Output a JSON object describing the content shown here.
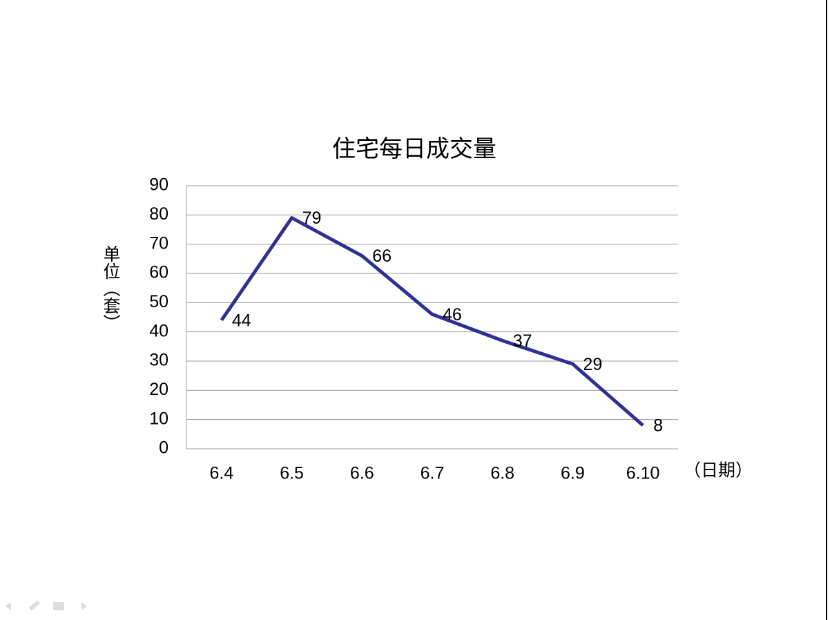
{
  "chart_data": {
    "type": "line",
    "title": "住宅每日成交量",
    "y_label": "单位（套）",
    "x_label": "（日期）",
    "categories": [
      "6.4",
      "6.5",
      "6.6",
      "6.7",
      "6.8",
      "6.9",
      "6.10"
    ],
    "values": [
      44,
      79,
      66,
      46,
      37,
      29,
      8
    ],
    "color": "#2e3192",
    "ylim": [
      0,
      90
    ],
    "yticks": [
      0,
      10,
      20,
      30,
      40,
      50,
      60,
      70,
      80,
      90
    ],
    "grid": true
  }
}
